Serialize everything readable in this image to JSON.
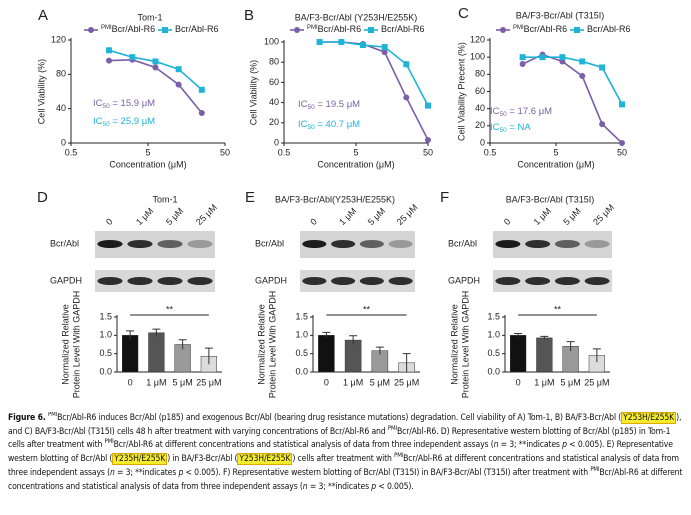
{
  "chart_data": [
    {
      "type": "line",
      "label": "A",
      "title": "Tom-1",
      "xlabel": "Concentration (μM)",
      "ylabel": "Cell Viability (%)",
      "xscale": "log",
      "xlim": [
        0.5,
        50
      ],
      "xticks": [
        0.5,
        5,
        50
      ],
      "ylim": [
        0,
        120
      ],
      "yticks": [
        0,
        40,
        80,
        120
      ],
      "x": [
        1.56,
        3.13,
        6.25,
        12.5,
        25
      ],
      "series": [
        {
          "name_prefix": "PMI",
          "name": "Bcr/Abl-R6",
          "color": "#7b5ea7",
          "marker": "circle",
          "values": [
            96,
            97,
            88,
            68,
            35
          ]
        },
        {
          "name": "Bcr/Abl-R6",
          "color": "#1fb3d6",
          "marker": "square",
          "values": [
            108,
            100,
            95,
            86,
            62
          ]
        }
      ],
      "annotations": [
        {
          "text": "IC",
          "sub": "50",
          "rest": " = 15.9 μM"
        },
        {
          "text": "IC",
          "sub": "50",
          "rest": " = 25.9 μM"
        }
      ]
    },
    {
      "type": "line",
      "label": "B",
      "title": "BA/F3-Bcr/Abl (Y253H/E255K)",
      "xlabel": "Concentration (μM)",
      "ylabel": "Cell Viability (%)",
      "xscale": "log",
      "xlim": [
        0.5,
        50
      ],
      "xticks": [
        0.5,
        5,
        50
      ],
      "ylim": [
        0,
        100
      ],
      "yticks": [
        0,
        20,
        40,
        60,
        80,
        100
      ],
      "x": [
        1.56,
        3.13,
        6.25,
        12.5,
        25,
        50
      ],
      "series": [
        {
          "name_prefix": "PMI",
          "name": "Bcr/Abl-R6",
          "color": "#7b5ea7",
          "marker": "circle",
          "values": [
            100,
            100,
            98,
            90,
            45,
            3
          ]
        },
        {
          "name": "Bcr/Abl-R6",
          "color": "#1fb3d6",
          "marker": "square",
          "values": [
            100,
            100,
            97,
            95,
            78,
            37
          ]
        }
      ],
      "annotations": [
        {
          "text": "IC",
          "sub": "50",
          "rest": " = 19.5 μM"
        },
        {
          "text": "IC",
          "sub": "50",
          "rest": " = 40.7 μM"
        }
      ]
    },
    {
      "type": "line",
      "label": "C",
      "title": "BA/F3-Bcr/Abl (T315I)",
      "xlabel": "Concentration (μM)",
      "ylabel": "Cell Viability Precent (%)",
      "xscale": "log",
      "xlim": [
        0.5,
        50
      ],
      "xticks": [
        0.5,
        5,
        50
      ],
      "ylim": [
        0,
        120
      ],
      "yticks": [
        0,
        20,
        40,
        60,
        80,
        100,
        120
      ],
      "x": [
        1.56,
        3.13,
        6.25,
        12.5,
        25,
        50
      ],
      "series": [
        {
          "name_prefix": "PMI",
          "name": "Bcr/Abl-R6",
          "color": "#7b5ea7",
          "marker": "circle",
          "values": [
            92,
            103,
            95,
            78,
            22,
            0
          ]
        },
        {
          "name": "Bcr/Abl-R6",
          "color": "#1fb3d6",
          "marker": "square",
          "values": [
            100,
            100,
            100,
            95,
            88,
            45
          ]
        }
      ],
      "annotations": [
        {
          "text": "IC",
          "sub": "50",
          "rest": " = 17.6 μM"
        },
        {
          "text": "IC",
          "sub": "50",
          "rest": " = NA"
        }
      ]
    },
    {
      "type": "bar",
      "label": "D",
      "title": "Tom-1",
      "ylabel": [
        "Normalized Relative",
        "Protein Level With GAPDH"
      ],
      "categories": [
        "0",
        "1 μM",
        "5 μM",
        "25 μM"
      ],
      "values": [
        1.0,
        1.07,
        0.75,
        0.43
      ],
      "errors": [
        0.12,
        0.1,
        0.13,
        0.22
      ],
      "colors": [
        "#111111",
        "#555555",
        "#9a9a9a",
        "#dcdcdc"
      ],
      "ylim": [
        0,
        1.5
      ],
      "yticks": [
        {
          "value": 0,
          "label": "0.0"
        },
        {
          "value": 0.5,
          "label": "0.5"
        },
        {
          "value": 1,
          "label": "1.0"
        },
        {
          "value": 1.5,
          "label": "1.5"
        }
      ],
      "significance": "**",
      "blot": {
        "lanes": [
          "0",
          "1 μM",
          "5 μM",
          "25 μM"
        ],
        "rows": [
          "Bcr/Abl",
          "GAPDH"
        ]
      }
    },
    {
      "type": "bar",
      "label": "E",
      "title": "BA/F3-Bcr/Abl(Y253H/E255K)",
      "ylabel": [
        "Normalized Relative",
        "Protein Level With GAPDH"
      ],
      "categories": [
        "0",
        "1 μM",
        "5 μM",
        "25 μM"
      ],
      "values": [
        1.0,
        0.87,
        0.58,
        0.25
      ],
      "errors": [
        0.08,
        0.12,
        0.1,
        0.25
      ],
      "colors": [
        "#111111",
        "#555555",
        "#9a9a9a",
        "#dcdcdc"
      ],
      "ylim": [
        0,
        1.5
      ],
      "yticks": [
        {
          "value": 0,
          "label": "0.0"
        },
        {
          "value": 0.5,
          "label": "0.5"
        },
        {
          "value": 1,
          "label": "1.0"
        },
        {
          "value": 1.5,
          "label": "1.5"
        }
      ],
      "significance": "**",
      "blot": {
        "lanes": [
          "0",
          "1 μM",
          "5 μM",
          "25 μM"
        ],
        "rows": [
          "Bcr/Abl",
          "GAPDH"
        ]
      }
    },
    {
      "type": "bar",
      "label": "F",
      "title": "BA/F3-Bcr/Abl (T315I)",
      "ylabel": [
        "Normalized Relative",
        "Protein Level With GAPDH"
      ],
      "categories": [
        "0",
        "1 μM",
        "5 μM",
        "25 μM"
      ],
      "values": [
        1.0,
        0.93,
        0.7,
        0.45
      ],
      "errors": [
        0.05,
        0.04,
        0.13,
        0.18
      ],
      "colors": [
        "#111111",
        "#555555",
        "#9a9a9a",
        "#dcdcdc"
      ],
      "ylim": [
        0,
        1.5
      ],
      "yticks": [
        {
          "value": 0,
          "label": "0.0"
        },
        {
          "value": 0.5,
          "label": "0.5"
        },
        {
          "value": 1,
          "label": "1.0"
        },
        {
          "value": 1.5,
          "label": "1.5"
        }
      ],
      "significance": "**",
      "blot": {
        "lanes": [
          "0",
          "1 μM",
          "5 μM",
          "25 μM"
        ],
        "rows": [
          "Bcr/Abl",
          "GAPDH"
        ]
      }
    }
  ],
  "caption": [
    {
      "text": "Figure 6.",
      "style": "bold"
    },
    {
      "text": " "
    },
    {
      "text": "PMI",
      "style": "sup"
    },
    {
      "text": "Bcr/Abl-R6 induces Bcr/Abl (p185) and exogenous Bcr/Abl (bearing drug resistance mutations) degradation. Cell viability of A) Tom-1, B) BA/F3-Bcr/Abl ("
    },
    {
      "text": "Y253H/E255K",
      "style": "hl"
    },
    {
      "text": "), and C) BA/F3-Bcr/Abl (T315I) cells 48 h after treatment with varying concentrations of Bcr/Abl-R6 and "
    },
    {
      "text": "PMI",
      "style": "sup"
    },
    {
      "text": "Bcr/Abl-R6. D) Representative western blotting of Bcr/Abl (p185) in Tom-1 cells after treatment with "
    },
    {
      "text": "PMI",
      "style": "sup"
    },
    {
      "text": "Bcr/Abl-R6 at different concentrations and statistical analysis of data from three independent assays ("
    },
    {
      "text": "n",
      "style": "it"
    },
    {
      "text": " = 3; **indicates "
    },
    {
      "text": "p",
      "style": "it"
    },
    {
      "text": " < 0.005). E) Representative western blotting of Bcr/Abl ("
    },
    {
      "text": "Y235H/E255K",
      "style": "hl"
    },
    {
      "text": ") in BA/F3-Bcr/Abl ("
    },
    {
      "text": "Y253H/E255K",
      "style": "hl"
    },
    {
      "text": ") cells after treatment with "
    },
    {
      "text": "PMI",
      "style": "sup"
    },
    {
      "text": "Bcr/Abl-R6 at different concentrations and statistical analysis of data from three independent assays ("
    },
    {
      "text": "n",
      "style": "it"
    },
    {
      "text": " = 3; **indicates "
    },
    {
      "text": "p",
      "style": "it"
    },
    {
      "text": " < 0.005). F) Representative western blotting of Bcr/Abl (T315I) in BA/F3-Bcr/Abl (T315I) after treatment with "
    },
    {
      "text": "PMI",
      "style": "sup"
    },
    {
      "text": "Bcr/Abl-R6 at different concentrations and statistical analysis of data from three independent assays ("
    },
    {
      "text": "n",
      "style": "it"
    },
    {
      "text": " = 3; **indicates "
    },
    {
      "text": "p",
      "style": "it"
    },
    {
      "text": " < 0.005)."
    }
  ]
}
